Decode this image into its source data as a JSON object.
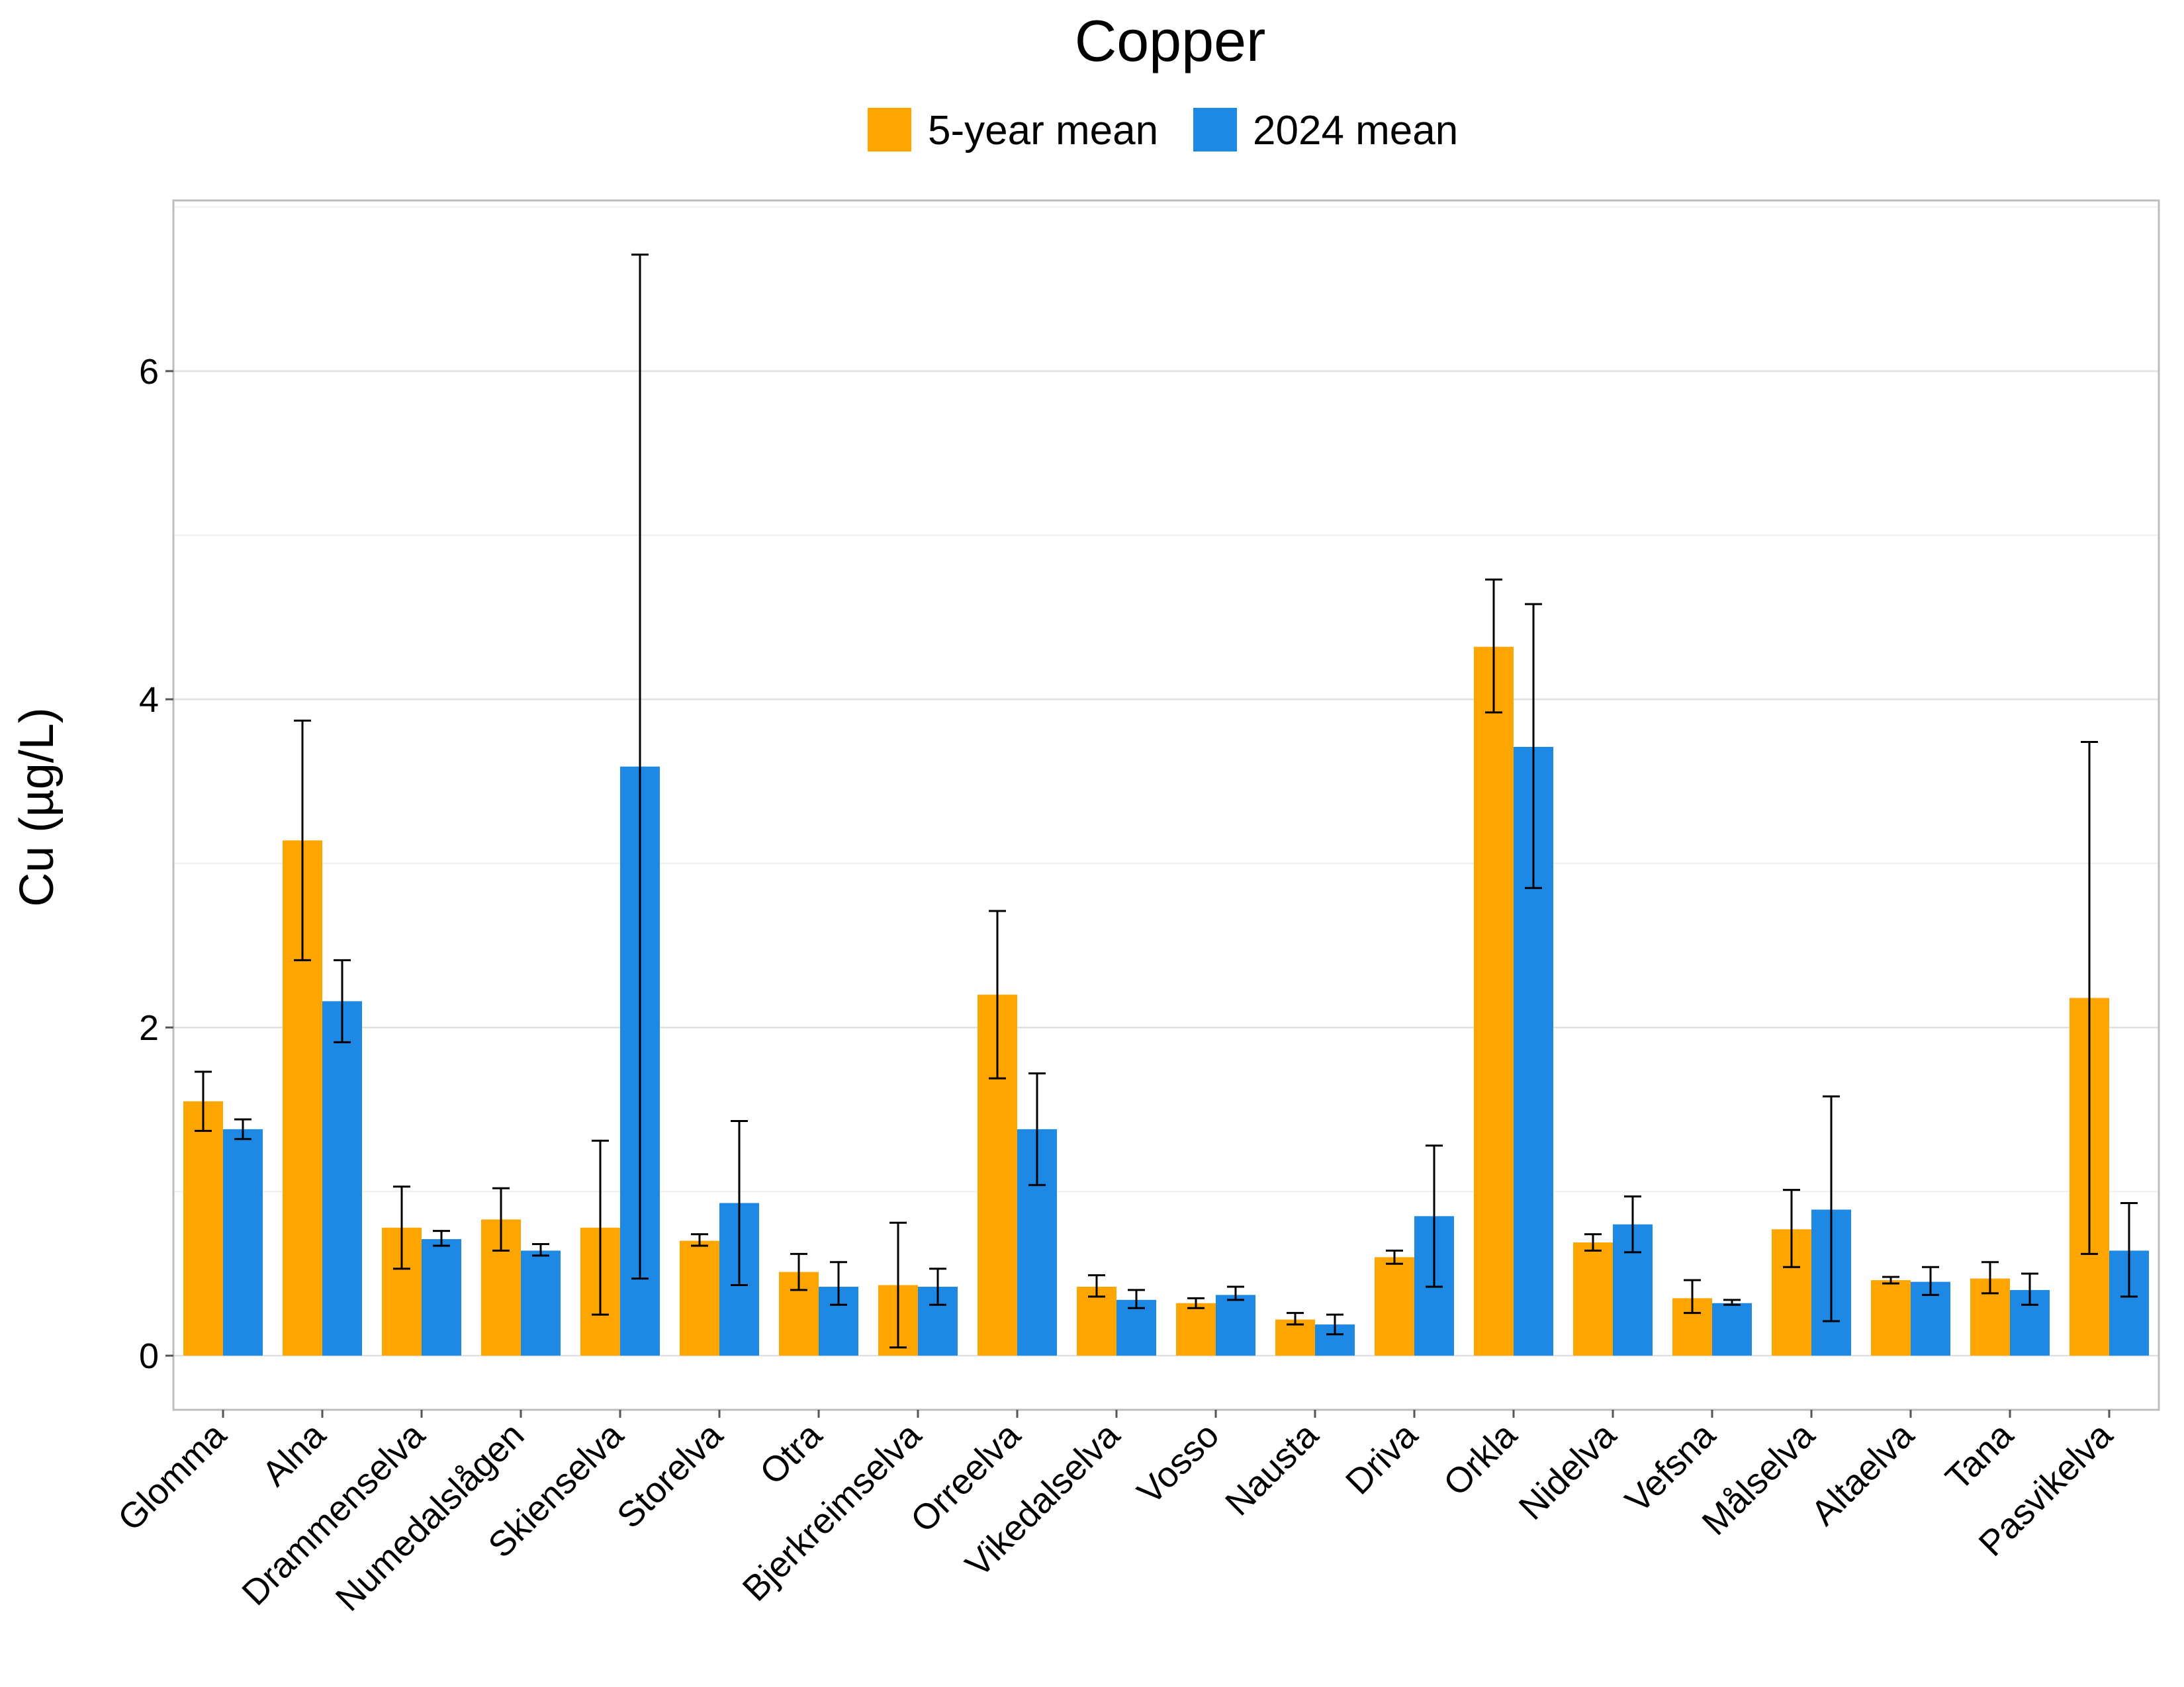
{
  "chart_data": {
    "type": "bar",
    "title": "Copper",
    "xlabel": "",
    "ylabel": "Cu (µg/L)",
    "ylim": [
      -0.33,
      7.04
    ],
    "yticks": [
      0,
      2,
      4,
      6
    ],
    "grid": true,
    "legend_position": "top",
    "categories": [
      "Glomma",
      "Alna",
      "Drammenselva",
      "Numedalslågen",
      "Skienselva",
      "Storelva",
      "Otra",
      "Bjerkreimselva",
      "Orreelva",
      "Vikedalselva",
      "Vosso",
      "Nausta",
      "Driva",
      "Orkla",
      "Nidelva",
      "Vefsna",
      "Målselva",
      "Altaelva",
      "Tana",
      "Pasvikelva"
    ],
    "series": [
      {
        "name": "5-year mean",
        "color": "#FFA500",
        "values": [
          1.55,
          3.14,
          0.78,
          0.83,
          0.78,
          0.7,
          0.51,
          0.43,
          2.2,
          0.42,
          0.32,
          0.22,
          0.6,
          4.32,
          0.69,
          0.35,
          0.77,
          0.46,
          0.47,
          2.18
        ],
        "error_low": [
          1.37,
          2.41,
          0.53,
          0.64,
          0.25,
          0.67,
          0.4,
          0.05,
          1.69,
          0.36,
          0.29,
          0.19,
          0.56,
          3.92,
          0.64,
          0.26,
          0.54,
          0.44,
          0.38,
          0.62
        ],
        "error_high": [
          1.73,
          3.87,
          1.03,
          1.02,
          1.31,
          0.74,
          0.62,
          0.81,
          2.71,
          0.49,
          0.35,
          0.26,
          0.64,
          4.73,
          0.74,
          0.46,
          1.01,
          0.48,
          0.57,
          3.74
        ]
      },
      {
        "name": "2024 mean",
        "color": "#1E88E5",
        "values": [
          1.38,
          2.16,
          0.71,
          0.64,
          3.59,
          0.93,
          0.42,
          0.42,
          1.38,
          0.34,
          0.37,
          0.19,
          0.85,
          3.71,
          0.8,
          0.32,
          0.89,
          0.45,
          0.4,
          0.64
        ],
        "error_low": [
          1.32,
          1.91,
          0.67,
          0.61,
          0.47,
          0.43,
          0.31,
          0.31,
          1.04,
          0.29,
          0.34,
          0.13,
          0.42,
          2.85,
          0.63,
          0.31,
          0.21,
          0.37,
          0.31,
          0.36
        ],
        "error_high": [
          1.44,
          2.41,
          0.76,
          0.68,
          6.71,
          1.43,
          0.57,
          0.53,
          1.72,
          0.4,
          0.42,
          0.25,
          1.28,
          4.58,
          0.97,
          0.34,
          1.58,
          0.54,
          0.5,
          0.93
        ]
      }
    ]
  }
}
